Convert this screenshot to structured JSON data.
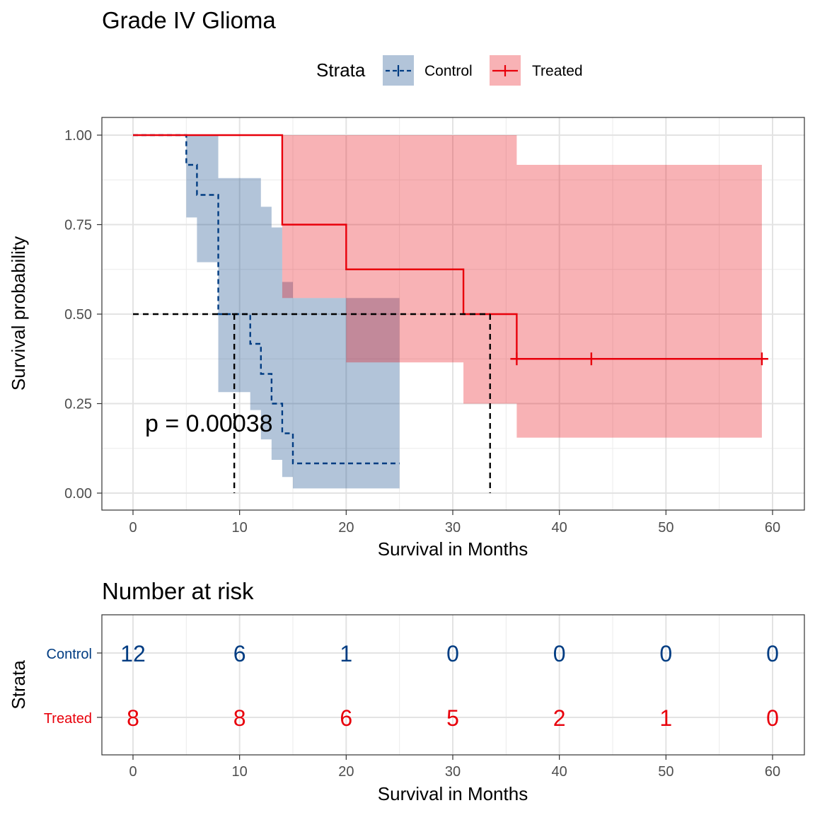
{
  "title": "Grade IV Glioma",
  "legend": {
    "title": "Strata",
    "position": "top",
    "items": [
      {
        "label": "Control",
        "color": "#003C82"
      },
      {
        "label": "Treated",
        "color": "#E8000B"
      }
    ]
  },
  "pvalue_text": "p = 0.00038",
  "chart_data": [
    {
      "type": "line",
      "subtype": "kaplan-meier survival curve with confidence bands",
      "title": "Grade IV Glioma",
      "xlabel": "Survival in Months",
      "ylabel": "Survival probability",
      "xlim": [
        0,
        60
      ],
      "ylim": [
        0,
        1
      ],
      "x_ticks": [
        0,
        10,
        20,
        30,
        40,
        50,
        60
      ],
      "x_tick_labels": [
        "0",
        "10",
        "20",
        "30",
        "40",
        "50",
        "60"
      ],
      "y_ticks": [
        0,
        0.25,
        0.5,
        0.75,
        1
      ],
      "y_tick_labels": [
        "0.00",
        "0.25",
        "0.50",
        "0.75",
        "1.00"
      ],
      "grid": true,
      "legend_position": "top",
      "median_survival": {
        "level": 0.5,
        "x": [
          9.5,
          33.5
        ]
      },
      "series": [
        {
          "name": "Control",
          "color": "#003C82",
          "line_style": "dashed",
          "steps": [
            [
              0,
              1.0
            ],
            [
              5,
              0.917
            ],
            [
              6,
              0.833
            ],
            [
              8,
              0.5
            ],
            [
              11,
              0.417
            ],
            [
              12,
              0.333
            ],
            [
              13,
              0.25
            ],
            [
              14,
              0.167
            ],
            [
              15,
              0.083
            ],
            [
              25,
              0.083
            ]
          ],
          "censored": [],
          "ci_steps": [
            [
              0,
              1.0,
              1.0
            ],
            [
              5,
              0.77,
              1.0
            ],
            [
              6,
              0.645,
              1.0
            ],
            [
              8,
              0.282,
              0.88
            ],
            [
              11,
              0.232,
              0.88
            ],
            [
              12,
              0.15,
              0.8
            ],
            [
              13,
              0.093,
              0.742
            ],
            [
              14,
              0.045,
              0.59
            ],
            [
              15,
              0.013,
              0.545
            ],
            [
              25,
              0.013,
              0.545
            ]
          ]
        },
        {
          "name": "Treated",
          "color": "#E8000B",
          "line_style": "solid",
          "steps": [
            [
              0,
              1.0
            ],
            [
              14,
              0.75
            ],
            [
              20,
              0.625
            ],
            [
              31,
              0.5
            ],
            [
              36,
              0.375
            ],
            [
              59,
              0.375
            ]
          ],
          "censored": [
            [
              36,
              0.375
            ],
            [
              43,
              0.375
            ],
            [
              59,
              0.375
            ]
          ],
          "ci_steps": [
            [
              0,
              1.0,
              1.0
            ],
            [
              14,
              0.545,
              1.0
            ],
            [
              20,
              0.365,
              1.0
            ],
            [
              31,
              0.25,
              1.0
            ],
            [
              36,
              0.155,
              0.917
            ],
            [
              59,
              0.155,
              0.917
            ]
          ]
        }
      ]
    },
    {
      "type": "table",
      "title": "Number at risk",
      "xlabel": "Survival in Months",
      "ylabel": "Strata",
      "xlim": [
        0,
        60
      ],
      "x_ticks": [
        0,
        10,
        20,
        30,
        40,
        50,
        60
      ],
      "x_tick_labels": [
        "0",
        "10",
        "20",
        "30",
        "40",
        "50",
        "60"
      ],
      "rows": [
        {
          "name": "Control",
          "color": "#003C82",
          "labels": [
            "12",
            "6",
            "1",
            "0",
            "0",
            "0",
            "0"
          ]
        },
        {
          "name": "Treated",
          "color": "#E8000B",
          "labels": [
            "8",
            "8",
            "6",
            "5",
            "2",
            "1",
            "0"
          ]
        }
      ]
    }
  ]
}
